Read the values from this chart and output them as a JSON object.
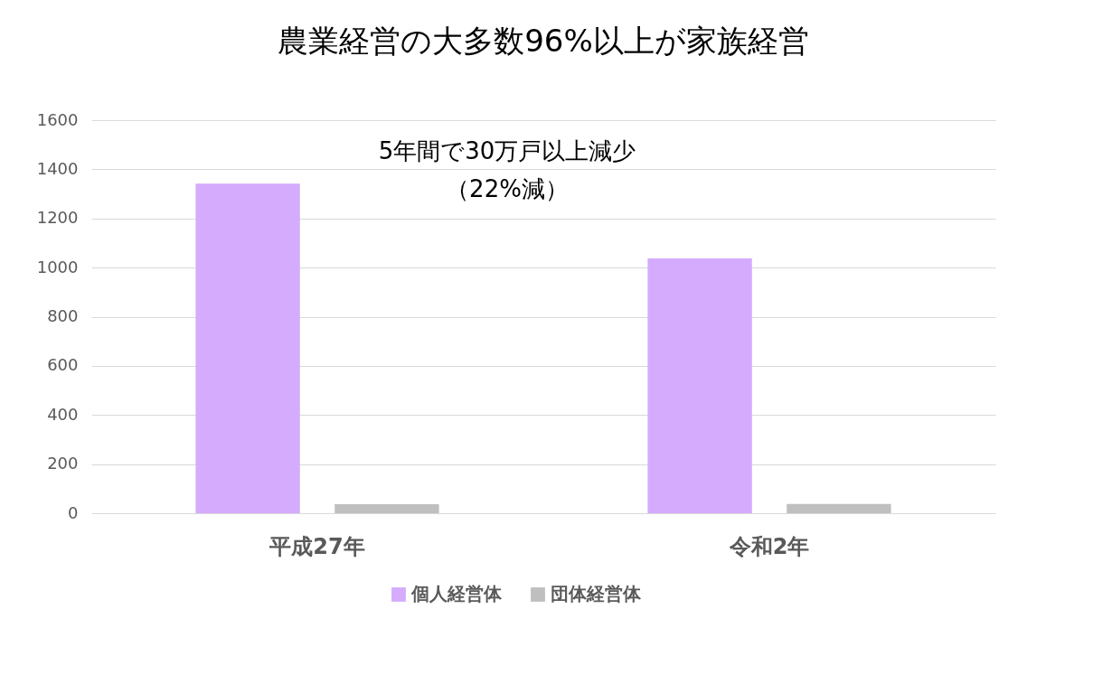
{
  "chart_data": {
    "type": "bar",
    "title": "農業経営の大多数96%以上が家族経営",
    "categories": [
      "平成27年",
      "令和2年"
    ],
    "series": [
      {
        "name": "個人経営体",
        "color": "#d5abfd",
        "values": [
          1342,
          1037
        ]
      },
      {
        "name": "団体経営体",
        "color": "#bfbfbf",
        "values": [
          37,
          38
        ]
      }
    ],
    "ylim": [
      0,
      1600
    ],
    "yticks": [
      0,
      200,
      400,
      600,
      800,
      1000,
      1200,
      1400,
      1600
    ],
    "grid": "y",
    "legend": "bottom",
    "annotations": [
      "5年間で30万戸以上減少",
      "（22%減）"
    ]
  }
}
